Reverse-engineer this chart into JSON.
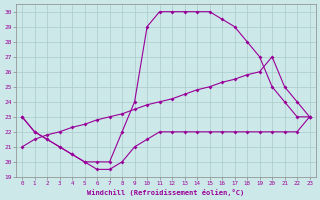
{
  "xlabel": "Windchill (Refroidissement éolien,°C)",
  "bg_color": "#cce8e8",
  "line_color": "#990099",
  "grid_color": "#aacccc",
  "xlim": [
    -0.5,
    23.5
  ],
  "ylim": [
    19,
    30.5
  ],
  "xticks": [
    0,
    1,
    2,
    3,
    4,
    5,
    6,
    7,
    8,
    9,
    10,
    11,
    12,
    13,
    14,
    15,
    16,
    17,
    18,
    19,
    20,
    21,
    22,
    23
  ],
  "yticks": [
    19,
    20,
    21,
    22,
    23,
    24,
    25,
    26,
    27,
    28,
    29,
    30
  ],
  "line1_x": [
    0,
    1,
    2,
    3,
    4,
    5,
    6,
    7,
    8,
    9,
    10,
    11,
    12,
    13,
    14,
    15,
    16,
    17,
    18,
    19,
    20,
    21,
    22,
    23
  ],
  "line1_y": [
    23,
    22,
    21.5,
    21,
    20.5,
    20,
    19.5,
    19.5,
    20,
    21,
    21.5,
    22,
    22,
    22,
    22,
    22,
    22,
    22,
    22,
    22,
    22,
    22,
    22,
    23
  ],
  "line2_x": [
    0,
    1,
    2,
    3,
    4,
    5,
    6,
    7,
    8,
    9,
    10,
    11,
    12,
    13,
    14,
    15,
    16,
    17,
    18,
    19,
    20,
    21,
    22,
    23
  ],
  "line2_y": [
    23,
    22,
    21.5,
    21,
    20.5,
    20,
    20,
    20,
    22,
    24,
    29,
    30,
    30,
    30,
    30,
    30,
    29.5,
    29,
    28,
    27,
    25,
    24,
    23,
    23
  ],
  "line3_x": [
    0,
    1,
    2,
    3,
    4,
    5,
    6,
    7,
    8,
    9,
    10,
    11,
    12,
    13,
    14,
    15,
    16,
    17,
    18,
    19,
    20,
    21,
    22,
    23
  ],
  "line3_y": [
    21,
    21.5,
    21.8,
    22,
    22.3,
    22.5,
    22.8,
    23,
    23.2,
    23.5,
    23.8,
    24,
    24.2,
    24.5,
    24.8,
    25,
    25.3,
    25.5,
    25.8,
    26,
    27,
    25,
    24,
    23
  ]
}
